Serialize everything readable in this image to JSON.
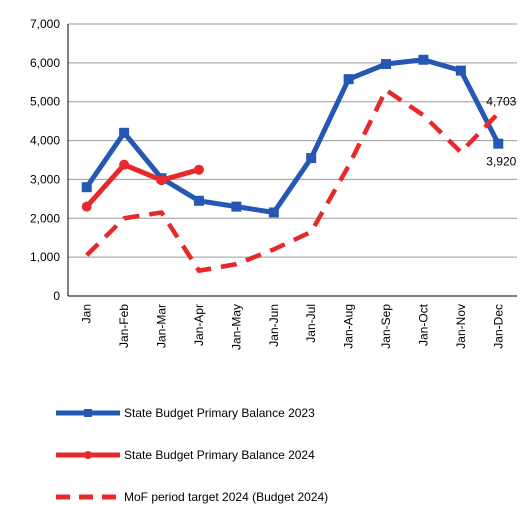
{
  "chart_data": {
    "type": "line",
    "categories": [
      "Jan",
      "Jan-Feb",
      "Jan-Mar",
      "Jan-Apr",
      "Jan-May",
      "Jan-Jun",
      "Jan-Jul",
      "Jan-Aug",
      "Jan-Sep",
      "Jan-Oct",
      "Jan-Nov",
      "Jan-Dec"
    ],
    "series": [
      {
        "name": "State Budget Primary Balance 2023",
        "color": "#2458b4",
        "marker": "square",
        "dashed": false,
        "values": [
          2800,
          4200,
          3030,
          2450,
          2300,
          2150,
          3550,
          5580,
          5970,
          6080,
          5800,
          3920
        ],
        "value_labels": [
          null,
          null,
          null,
          null,
          null,
          null,
          null,
          null,
          null,
          null,
          null,
          "3,920"
        ]
      },
      {
        "name": "State Budget Primary Balance 2024",
        "color": "#e8292b",
        "marker": "circle",
        "dashed": false,
        "values": [
          2300,
          3380,
          2980,
          3250,
          null,
          null,
          null,
          null,
          null,
          null,
          null,
          null
        ]
      },
      {
        "name": "MoF period target 2024 (Budget 2024)",
        "color": "#e8292b",
        "marker": "none",
        "dashed": true,
        "values": [
          1050,
          2000,
          2150,
          650,
          820,
          1200,
          1650,
          3350,
          5300,
          4650,
          3700,
          4703
        ],
        "value_labels": [
          null,
          null,
          null,
          null,
          null,
          null,
          null,
          null,
          null,
          null,
          null,
          "4,703"
        ]
      }
    ],
    "ylim": [
      0,
      7000
    ],
    "yticks": [
      0,
      {
        "value": 1000,
        "label": "1,000"
      },
      {
        "value": 2000,
        "label": "2,000"
      },
      {
        "value": 3000,
        "label": "3,000"
      },
      {
        "value": 4000,
        "label": "4,000"
      },
      {
        "value": 5000,
        "label": "5,000"
      },
      {
        "value": 6000,
        "label": "6,000"
      },
      {
        "value": 7000,
        "label": "7,000"
      }
    ],
    "grid": true,
    "legend": "bottom"
  }
}
